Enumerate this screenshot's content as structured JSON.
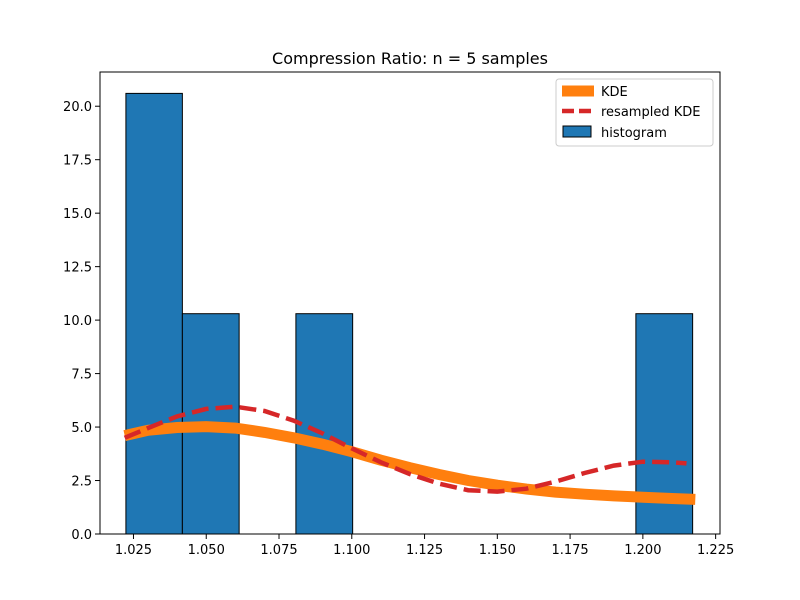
{
  "chart_data": {
    "type": "bar",
    "title": "Compression Ratio: n = 5 samples",
    "xlabel": "",
    "ylabel": "",
    "xlim": [
      1.0135,
      1.2265
    ],
    "ylim": [
      0,
      21.6
    ],
    "xticks": [
      "1.025",
      "1.050",
      "1.075",
      "1.100",
      "1.125",
      "1.150",
      "1.175",
      "1.200",
      "1.225"
    ],
    "xtick_values": [
      1.025,
      1.05,
      1.075,
      1.1,
      1.125,
      1.15,
      1.175,
      1.2,
      1.225
    ],
    "yticks": [
      "0.0",
      "2.5",
      "5.0",
      "7.5",
      "10.0",
      "12.5",
      "15.0",
      "17.5",
      "20.0"
    ],
    "ytick_values": [
      0,
      2.5,
      5,
      7.5,
      10,
      12.5,
      15,
      17.5,
      20
    ],
    "histogram": {
      "name": "histogram",
      "color": "#1f77b4",
      "bins": [
        {
          "x0": 1.0224,
          "x1": 1.0418,
          "value": 20.6
        },
        {
          "x0": 1.0418,
          "x1": 1.0613,
          "value": 10.3
        },
        {
          "x0": 1.0808,
          "x1": 1.1003,
          "value": 10.3
        },
        {
          "x0": 1.1976,
          "x1": 1.2171,
          "value": 10.3
        }
      ]
    },
    "series": [
      {
        "name": "KDE",
        "color": "#ff7f0e",
        "style": "solid",
        "x": [
          1.022,
          1.03,
          1.04,
          1.05,
          1.06,
          1.07,
          1.08,
          1.09,
          1.1,
          1.11,
          1.12,
          1.13,
          1.14,
          1.15,
          1.16,
          1.17,
          1.18,
          1.19,
          1.2,
          1.21,
          1.218
        ],
        "y": [
          4.6,
          4.85,
          4.98,
          5.02,
          4.95,
          4.75,
          4.5,
          4.2,
          3.85,
          3.45,
          3.1,
          2.78,
          2.5,
          2.28,
          2.1,
          1.96,
          1.86,
          1.78,
          1.72,
          1.66,
          1.62
        ]
      },
      {
        "name": "resampled KDE",
        "color": "#d62728",
        "style": "dashed",
        "x": [
          1.022,
          1.03,
          1.04,
          1.05,
          1.06,
          1.07,
          1.08,
          1.09,
          1.1,
          1.11,
          1.12,
          1.13,
          1.14,
          1.15,
          1.16,
          1.17,
          1.18,
          1.19,
          1.2,
          1.21,
          1.215
        ],
        "y": [
          4.5,
          4.95,
          5.5,
          5.85,
          5.95,
          5.75,
          5.3,
          4.7,
          4.0,
          3.35,
          2.8,
          2.35,
          2.05,
          1.98,
          2.12,
          2.45,
          2.85,
          3.2,
          3.38,
          3.35,
          3.3
        ]
      }
    ],
    "legend": {
      "placement": "top-right",
      "entries": [
        "KDE",
        "resampled KDE",
        "histogram"
      ]
    }
  }
}
